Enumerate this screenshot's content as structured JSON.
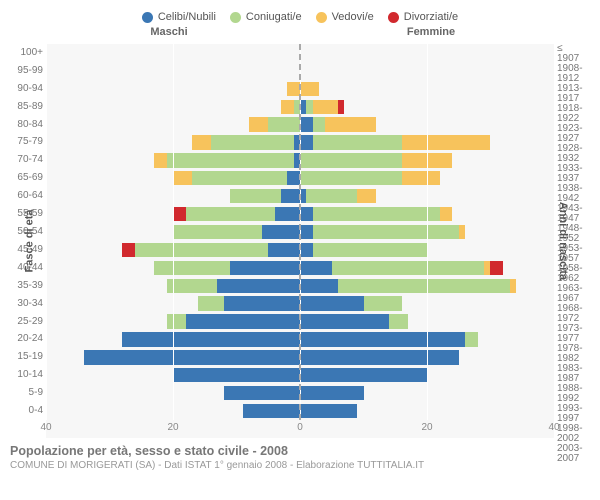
{
  "legend": [
    {
      "key": "celibi",
      "label": "Celibi/Nubili",
      "color": "#3b77b4"
    },
    {
      "key": "coniugati",
      "label": "Coniugati/e",
      "color": "#b2d78f"
    },
    {
      "key": "vedovi",
      "label": "Vedovi/e",
      "color": "#f7c35c"
    },
    {
      "key": "divorziati",
      "label": "Divorziati/e",
      "color": "#d1292e"
    }
  ],
  "headers": {
    "male": "Maschi",
    "female": "Femmine"
  },
  "ylabels": {
    "left": "Fasce di età",
    "right": "Anni di nascita"
  },
  "footer": {
    "title": "Popolazione per età, sesso e stato civile - 2008",
    "sub": "COMUNE DI MORIGERATI (SA) - Dati ISTAT 1° gennaio 2008 - Elaborazione TUTTITALIA.IT"
  },
  "chart": {
    "type": "population-pyramid",
    "xmax": 40,
    "xticks": [
      40,
      20,
      0,
      20,
      40
    ],
    "background": "#f7f7f7",
    "grid_color": "#ffffff",
    "centerline_color": "#aaaaaa",
    "bar_gap_pct": 20,
    "age_bins": [
      "100+",
      "95-99",
      "90-94",
      "85-89",
      "80-84",
      "75-79",
      "70-74",
      "65-69",
      "60-64",
      "55-59",
      "50-54",
      "45-49",
      "40-44",
      "35-39",
      "30-34",
      "25-29",
      "20-24",
      "15-19",
      "10-14",
      "5-9",
      "0-4"
    ],
    "birth_bins": [
      "≤ 1907",
      "1908-1912",
      "1913-1917",
      "1918-1922",
      "1923-1927",
      "1928-1932",
      "1933-1937",
      "1938-1942",
      "1943-1947",
      "1948-1952",
      "1953-1957",
      "1958-1962",
      "1963-1967",
      "1968-1972",
      "1973-1977",
      "1978-1982",
      "1983-1987",
      "1988-1992",
      "1993-1997",
      "1998-2002",
      "2003-2007"
    ],
    "rows": [
      {
        "m": {
          "cel": 0,
          "con": 0,
          "ved": 0,
          "div": 0
        },
        "f": {
          "cel": 0,
          "con": 0,
          "ved": 0,
          "div": 0
        }
      },
      {
        "m": {
          "cel": 0,
          "con": 0,
          "ved": 0,
          "div": 0
        },
        "f": {
          "cel": 0,
          "con": 0,
          "ved": 0,
          "div": 0
        }
      },
      {
        "m": {
          "cel": 0,
          "con": 0,
          "ved": 2,
          "div": 0
        },
        "f": {
          "cel": 0,
          "con": 0,
          "ved": 3,
          "div": 0
        }
      },
      {
        "m": {
          "cel": 0,
          "con": 1,
          "ved": 2,
          "div": 0
        },
        "f": {
          "cel": 1,
          "con": 1,
          "ved": 4,
          "div": 1
        }
      },
      {
        "m": {
          "cel": 0,
          "con": 5,
          "ved": 3,
          "div": 0
        },
        "f": {
          "cel": 2,
          "con": 2,
          "ved": 8,
          "div": 0
        }
      },
      {
        "m": {
          "cel": 1,
          "con": 13,
          "ved": 3,
          "div": 0
        },
        "f": {
          "cel": 2,
          "con": 14,
          "ved": 14,
          "div": 0
        }
      },
      {
        "m": {
          "cel": 1,
          "con": 20,
          "ved": 2,
          "div": 0
        },
        "f": {
          "cel": 0,
          "con": 16,
          "ved": 8,
          "div": 0
        }
      },
      {
        "m": {
          "cel": 2,
          "con": 15,
          "ved": 3,
          "div": 0
        },
        "f": {
          "cel": 0,
          "con": 16,
          "ved": 6,
          "div": 0
        }
      },
      {
        "m": {
          "cel": 3,
          "con": 8,
          "ved": 0,
          "div": 0
        },
        "f": {
          "cel": 1,
          "con": 8,
          "ved": 3,
          "div": 0
        }
      },
      {
        "m": {
          "cel": 4,
          "con": 14,
          "ved": 0,
          "div": 2
        },
        "f": {
          "cel": 2,
          "con": 20,
          "ved": 2,
          "div": 0
        }
      },
      {
        "m": {
          "cel": 6,
          "con": 14,
          "ved": 0,
          "div": 0
        },
        "f": {
          "cel": 2,
          "con": 23,
          "ved": 1,
          "div": 0
        }
      },
      {
        "m": {
          "cel": 5,
          "con": 21,
          "ved": 0,
          "div": 2
        },
        "f": {
          "cel": 2,
          "con": 18,
          "ved": 0,
          "div": 0
        }
      },
      {
        "m": {
          "cel": 11,
          "con": 12,
          "ved": 0,
          "div": 0
        },
        "f": {
          "cel": 5,
          "con": 24,
          "ved": 1,
          "div": 2
        }
      },
      {
        "m": {
          "cel": 13,
          "con": 8,
          "ved": 0,
          "div": 0
        },
        "f": {
          "cel": 6,
          "con": 27,
          "ved": 1,
          "div": 0
        }
      },
      {
        "m": {
          "cel": 12,
          "con": 4,
          "ved": 0,
          "div": 0
        },
        "f": {
          "cel": 10,
          "con": 6,
          "ved": 0,
          "div": 0
        }
      },
      {
        "m": {
          "cel": 18,
          "con": 3,
          "ved": 0,
          "div": 0
        },
        "f": {
          "cel": 14,
          "con": 3,
          "ved": 0,
          "div": 0
        }
      },
      {
        "m": {
          "cel": 28,
          "con": 0,
          "ved": 0,
          "div": 0
        },
        "f": {
          "cel": 26,
          "con": 2,
          "ved": 0,
          "div": 0
        }
      },
      {
        "m": {
          "cel": 34,
          "con": 0,
          "ved": 0,
          "div": 0
        },
        "f": {
          "cel": 25,
          "con": 0,
          "ved": 0,
          "div": 0
        }
      },
      {
        "m": {
          "cel": 20,
          "con": 0,
          "ved": 0,
          "div": 0
        },
        "f": {
          "cel": 20,
          "con": 0,
          "ved": 0,
          "div": 0
        }
      },
      {
        "m": {
          "cel": 12,
          "con": 0,
          "ved": 0,
          "div": 0
        },
        "f": {
          "cel": 10,
          "con": 0,
          "ved": 0,
          "div": 0
        }
      },
      {
        "m": {
          "cel": 9,
          "con": 0,
          "ved": 0,
          "div": 0
        },
        "f": {
          "cel": 9,
          "con": 0,
          "ved": 0,
          "div": 0
        }
      }
    ]
  }
}
